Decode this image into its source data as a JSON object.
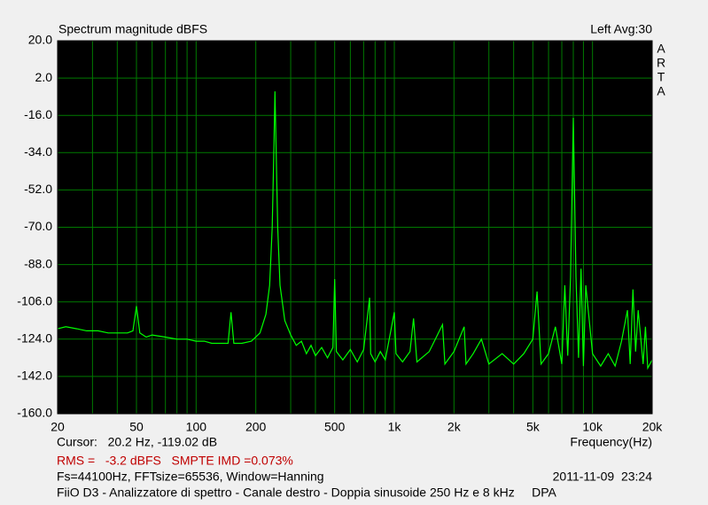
{
  "chart_data": {
    "type": "line",
    "title": "Spectrum magnitude dBFS",
    "status": "Left  Avg:30",
    "brand": [
      "A",
      "R",
      "T",
      "A"
    ],
    "cursor": "Cursor:   20.2 Hz, -119.02 dB",
    "x_label": "Frequency(Hz)",
    "rms": "RMS =   -3.2 dBFS   SMPTE IMD =0.073%",
    "settings": "Fs=44100Hz, FFTsize=65536, Window=Hanning",
    "timestamp": "2011-11-09  23:24",
    "description": "FiiO D3 - Analizzatore di spettro - Canale destro - Doppia sinusoide 250 Hz e 8 kHz     DPA",
    "x_log": true,
    "grid": true,
    "xlim": [
      20,
      20000
    ],
    "ylim": [
      -160,
      20
    ],
    "xticks": [
      20,
      50,
      100,
      200,
      500,
      {
        "value": 1000,
        "label": "1k"
      },
      {
        "value": 2000,
        "label": "2k"
      },
      {
        "value": 5000,
        "label": "5k"
      },
      {
        "value": 10000,
        "label": "10k"
      },
      {
        "value": 20000,
        "label": "20k"
      }
    ],
    "xgrid": [
      30,
      40,
      60,
      70,
      80,
      90,
      300,
      400,
      600,
      700,
      800,
      900,
      3000,
      4000,
      6000,
      7000,
      8000,
      9000
    ],
    "yticks": [
      {
        "value": 20,
        "label": "20.0"
      },
      {
        "value": 2,
        "label": "2.0"
      },
      {
        "value": -16,
        "label": "-16.0"
      },
      {
        "value": -34,
        "label": "-34.0"
      },
      {
        "value": -52,
        "label": "-52.0"
      },
      {
        "value": -70,
        "label": "-70.0"
      },
      {
        "value": -88,
        "label": "-88.0"
      },
      {
        "value": -106,
        "label": "-106.0"
      },
      {
        "value": -124,
        "label": "-124.0"
      },
      {
        "value": -142,
        "label": "-142.0"
      },
      {
        "value": -160,
        "label": "-160.0"
      }
    ],
    "x": [
      20,
      22,
      25,
      28,
      32,
      36,
      40,
      45,
      48,
      50,
      52,
      56,
      60,
      70,
      80,
      90,
      100,
      110,
      120,
      130,
      145,
      150,
      155,
      170,
      190,
      210,
      225,
      235,
      242,
      247,
      250,
      253,
      258,
      265,
      280,
      300,
      320,
      340,
      360,
      380,
      400,
      430,
      460,
      490,
      500,
      510,
      550,
      600,
      650,
      700,
      750,
      760,
      800,
      850,
      900,
      1000,
      1020,
      1100,
      1200,
      1250,
      1300,
      1500,
      1750,
      1800,
      2000,
      2250,
      2300,
      2500,
      2750,
      3000,
      3500,
      4000,
      4500,
      5000,
      5250,
      5500,
      6000,
      6500,
      7000,
      7250,
      7500,
      7750,
      8000,
      8250,
      8500,
      8750,
      9000,
      9250,
      10000,
      11000,
      12000,
      13000,
      14000,
      15000,
      15500,
      16000,
      16500,
      17000,
      18000,
      18500,
      19000,
      20000
    ],
    "series": [
      {
        "color": "#00ff00",
        "values": [
          -119,
          -118,
          -119,
          -120,
          -120,
          -121,
          -121,
          -121,
          -120,
          -108,
          -121,
          -123,
          -122,
          -123,
          -124,
          -124,
          -125,
          -125,
          -126,
          -126,
          -126,
          -111,
          -126,
          -126,
          -125,
          -121,
          -112,
          -98,
          -70,
          -30,
          -4.4,
          -30,
          -70,
          -98,
          -115,
          -122,
          -127,
          -125,
          -131,
          -127,
          -132,
          -128,
          -133,
          -128,
          -95,
          -130,
          -134,
          -129,
          -135,
          -129,
          -104,
          -131,
          -135,
          -130,
          -134,
          -111,
          -131,
          -135,
          -130,
          -114,
          -135,
          -130,
          -117,
          -136,
          -130,
          -118,
          -136,
          -131,
          -124,
          -136,
          -131,
          -136,
          -131,
          -124,
          -101,
          -136,
          -131,
          -118,
          -136,
          -98,
          -132,
          -94,
          -17.2,
          -94,
          -133,
          -90,
          -137,
          -98,
          -131,
          -137,
          -131,
          -137,
          -125,
          -110,
          -136,
          -100,
          -130,
          -110,
          -136,
          -118,
          -138,
          -134
        ]
      }
    ]
  }
}
